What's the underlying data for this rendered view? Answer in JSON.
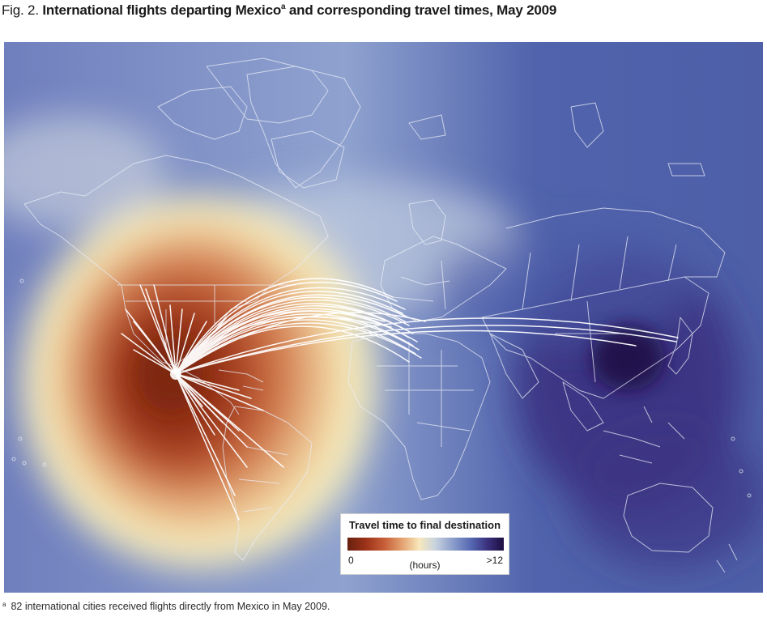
{
  "figure": {
    "label": "Fig. 2.",
    "title": "International flights departing Mexico",
    "title_marker": "a",
    "title_suffix": " and corresponding travel times, May 2009"
  },
  "legend": {
    "title": "Travel time to final destination",
    "min_label": "0",
    "unit_label": "(hours)",
    "max_label": ">12",
    "color_scale": [
      "#672010",
      "#c8603a",
      "#f7e8bc",
      "#8d9fcb",
      "#392f7c",
      "#1d0d40"
    ]
  },
  "footnote": {
    "marker": "a",
    "text": "82 international cities received flights directly from Mexico in May 2009."
  },
  "map": {
    "origin": "Mexico",
    "route_color": "#ffffff",
    "background_color": "#5468ae"
  }
}
